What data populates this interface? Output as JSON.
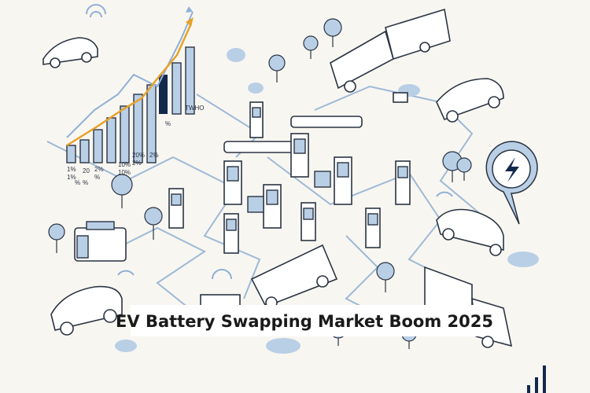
{
  "caption": {
    "title": "EV Battery Swapping Market Boom 2025"
  },
  "illustration_labels": [
    "1%",
    "1%",
    "2%",
    "10%",
    "10%",
    "%",
    "%",
    "%",
    "20",
    "2%",
    "20%",
    "2%",
    "TWHO",
    "%"
  ]
}
